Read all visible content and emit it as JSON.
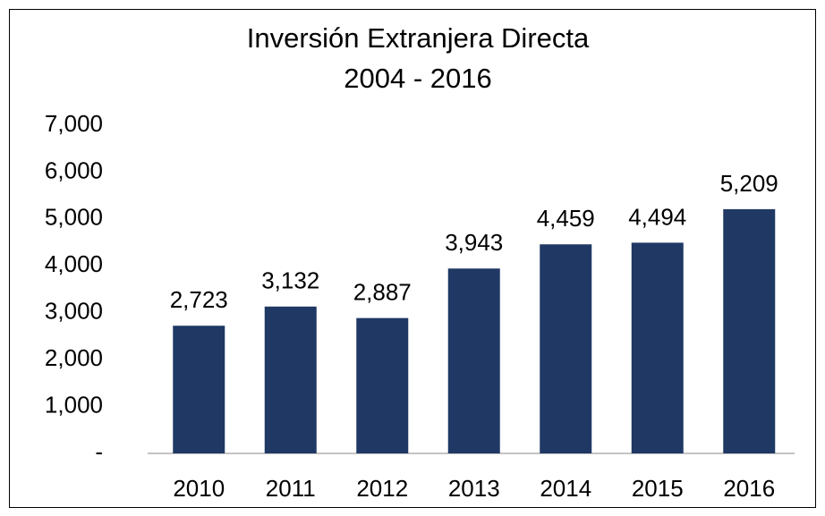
{
  "chart_data": {
    "type": "bar",
    "title": "Inversión Extranjera Directa",
    "subtitle": "2004 - 2016",
    "categories": [
      "2010",
      "2011",
      "2012",
      "2013",
      "2014",
      "2015",
      "2016"
    ],
    "values": [
      2723,
      3132,
      2887,
      3943,
      4459,
      4494,
      5209
    ],
    "value_labels": [
      "2,723",
      "3,132",
      "2,887",
      "3,943",
      "4,459",
      "4,494",
      "5,209"
    ],
    "color": "#1f3864",
    "ylim": [
      0,
      7000
    ],
    "yticks": [
      {
        "value": 0,
        "label": "-"
      },
      {
        "value": 1000,
        "label": "1,000"
      },
      {
        "value": 2000,
        "label": "2,000"
      },
      {
        "value": 3000,
        "label": "3,000"
      },
      {
        "value": 4000,
        "label": "4,000"
      },
      {
        "value": 5000,
        "label": "5,000"
      },
      {
        "value": 6000,
        "label": "6,000"
      },
      {
        "value": 7000,
        "label": "7,000"
      }
    ],
    "grid": false
  }
}
